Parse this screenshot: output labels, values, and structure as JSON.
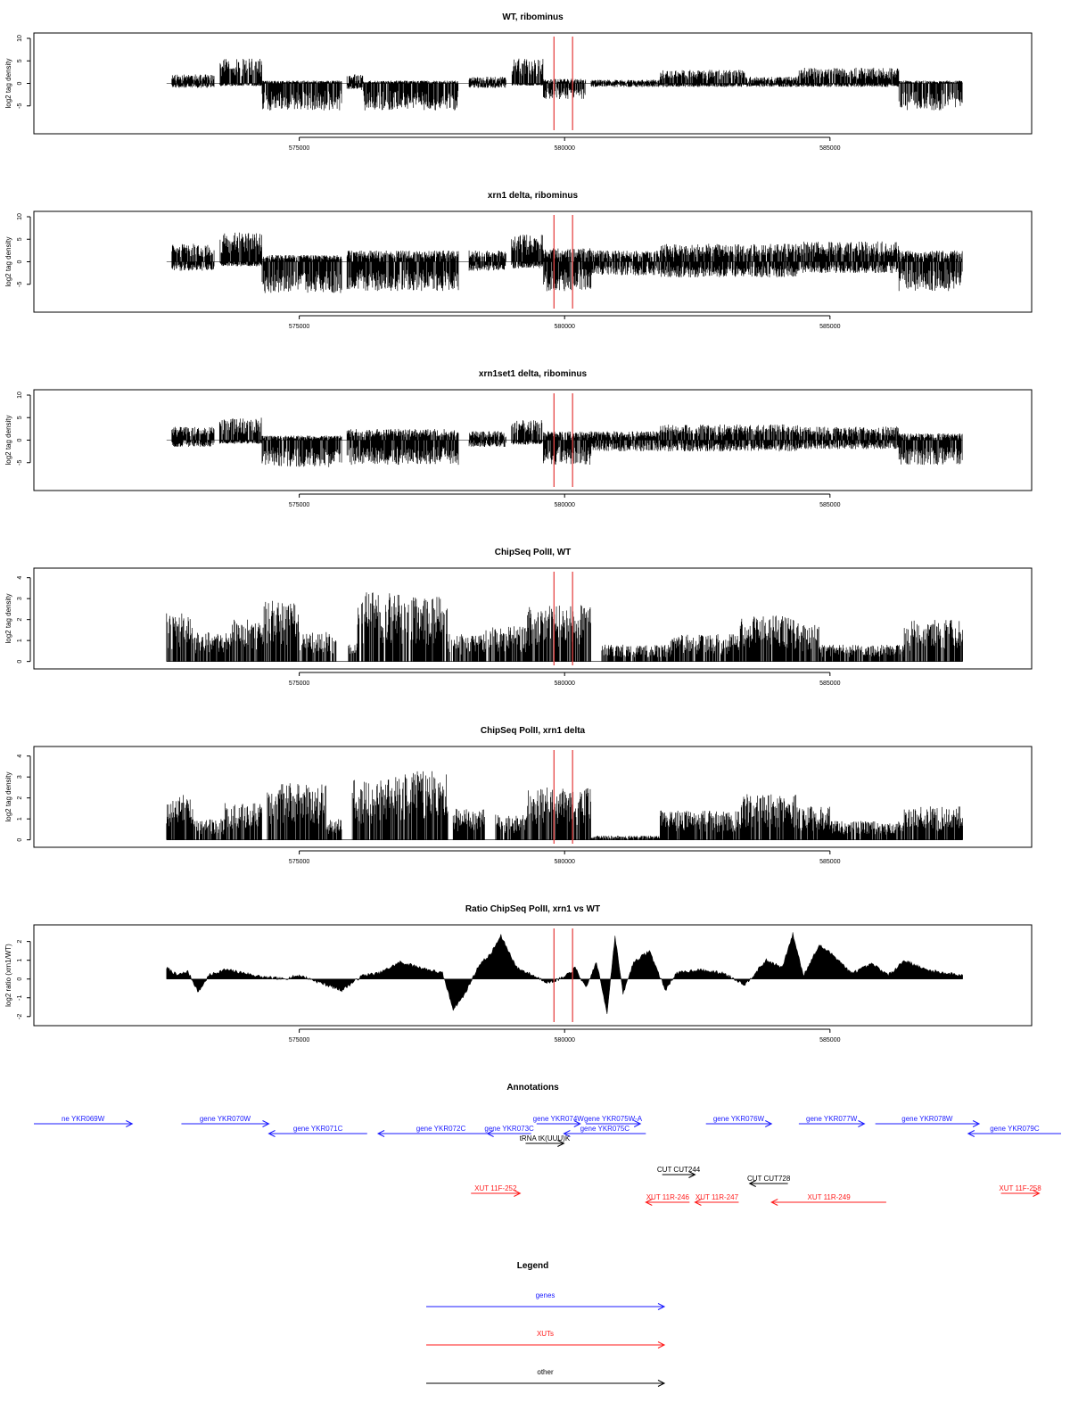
{
  "colors": {
    "gene": "#1a1aff",
    "xut": "#ff1a1a",
    "other": "#000000",
    "marker": "#e64646",
    "trace": "#000000"
  },
  "markers_x": [
    579800,
    580150
  ],
  "chart_data": [
    {
      "type": "bar",
      "title": "WT, ribominus",
      "ylabel": "log2 tag density",
      "ylim": [
        -10,
        10
      ],
      "yticks": [
        -5,
        0,
        5,
        10
      ],
      "ytick_labels": [
        "-5",
        "0",
        "5",
        "10"
      ],
      "xlim": [
        570000,
        588800
      ],
      "xticks": [
        575000,
        580000,
        585000
      ],
      "xtick_labels": [
        "575000",
        "580000",
        "585000"
      ],
      "grid": false,
      "x_range": [
        572500,
        587500
      ],
      "seed": 11,
      "density": 1.0,
      "segments": [
        {
          "x0": 572600,
          "x1": 573400,
          "pos": 2.0,
          "neg": -1.0
        },
        {
          "x0": 573500,
          "x1": 574300,
          "pos": 5.5,
          "neg": -0.6
        },
        {
          "x0": 574300,
          "x1": 575800,
          "pos": 0.6,
          "neg": -6.0
        },
        {
          "x0": 575900,
          "x1": 576200,
          "pos": 2.0,
          "neg": -1.5
        },
        {
          "x0": 576200,
          "x1": 578000,
          "pos": 0.6,
          "neg": -6.0
        },
        {
          "x0": 578200,
          "x1": 578900,
          "pos": 1.5,
          "neg": -1.0
        },
        {
          "x0": 579000,
          "x1": 579600,
          "pos": 5.5,
          "neg": -0.5
        },
        {
          "x0": 579600,
          "x1": 580400,
          "pos": 1.0,
          "neg": -3.5
        },
        {
          "x0": 580500,
          "x1": 581800,
          "pos": 0.8,
          "neg": -0.8
        },
        {
          "x0": 581800,
          "x1": 583400,
          "pos": 3.0,
          "neg": -0.8
        },
        {
          "x0": 583400,
          "x1": 584400,
          "pos": 1.5,
          "neg": -0.8
        },
        {
          "x0": 584400,
          "x1": 586300,
          "pos": 3.5,
          "neg": -0.8
        },
        {
          "x0": 586300,
          "x1": 587500,
          "pos": 0.6,
          "neg": -6.0
        }
      ]
    },
    {
      "type": "bar",
      "title": "xrn1 delta, ribominus",
      "ylabel": "log2 tag density",
      "ylim": [
        -10,
        10
      ],
      "yticks": [
        -5,
        0,
        5,
        10
      ],
      "ytick_labels": [
        "-5",
        "0",
        "5",
        "10"
      ],
      "xlim": [
        570000,
        588800
      ],
      "xticks": [
        575000,
        580000,
        585000
      ],
      "xtick_labels": [
        "575000",
        "580000",
        "585000"
      ],
      "grid": false,
      "x_range": [
        572500,
        587500
      ],
      "seed": 23,
      "density": 1.0,
      "segments": [
        {
          "x0": 572600,
          "x1": 573400,
          "pos": 4.0,
          "neg": -2.0
        },
        {
          "x0": 573500,
          "x1": 574300,
          "pos": 6.5,
          "neg": -1.0
        },
        {
          "x0": 574300,
          "x1": 575800,
          "pos": 1.5,
          "neg": -7.0
        },
        {
          "x0": 575900,
          "x1": 578000,
          "pos": 2.5,
          "neg": -6.5
        },
        {
          "x0": 578200,
          "x1": 578900,
          "pos": 2.5,
          "neg": -2.0
        },
        {
          "x0": 579000,
          "x1": 579600,
          "pos": 6.0,
          "neg": -1.5
        },
        {
          "x0": 579600,
          "x1": 580500,
          "pos": 3.0,
          "neg": -6.5
        },
        {
          "x0": 580500,
          "x1": 581800,
          "pos": 2.5,
          "neg": -3.0
        },
        {
          "x0": 581800,
          "x1": 584400,
          "pos": 4.0,
          "neg": -3.5
        },
        {
          "x0": 584400,
          "x1": 586300,
          "pos": 4.5,
          "neg": -2.5
        },
        {
          "x0": 586300,
          "x1": 587500,
          "pos": 2.5,
          "neg": -6.5
        }
      ]
    },
    {
      "type": "bar",
      "title": "xrn1set1 delta, ribominus",
      "ylabel": "log2 tag density",
      "ylim": [
        -10,
        10
      ],
      "yticks": [
        -5,
        0,
        5,
        10
      ],
      "ytick_labels": [
        "-5",
        "0",
        "5",
        "10"
      ],
      "xlim": [
        570000,
        588800
      ],
      "xticks": [
        575000,
        580000,
        585000
      ],
      "xtick_labels": [
        "575000",
        "580000",
        "585000"
      ],
      "grid": false,
      "x_range": [
        572500,
        587500
      ],
      "seed": 37,
      "density": 1.0,
      "segments": [
        {
          "x0": 572600,
          "x1": 573400,
          "pos": 3.0,
          "neg": -1.5
        },
        {
          "x0": 573500,
          "x1": 574300,
          "pos": 5.0,
          "neg": -0.8
        },
        {
          "x0": 574300,
          "x1": 575800,
          "pos": 1.0,
          "neg": -6.0
        },
        {
          "x0": 575900,
          "x1": 578000,
          "pos": 2.5,
          "neg": -5.5
        },
        {
          "x0": 578200,
          "x1": 578900,
          "pos": 2.0,
          "neg": -1.5
        },
        {
          "x0": 579000,
          "x1": 579600,
          "pos": 4.5,
          "neg": -1.0
        },
        {
          "x0": 579600,
          "x1": 580500,
          "pos": 2.0,
          "neg": -5.5
        },
        {
          "x0": 580500,
          "x1": 581800,
          "pos": 2.0,
          "neg": -2.5
        },
        {
          "x0": 581800,
          "x1": 584400,
          "pos": 3.5,
          "neg": -2.5
        },
        {
          "x0": 584400,
          "x1": 586300,
          "pos": 3.0,
          "neg": -2.0
        },
        {
          "x0": 586300,
          "x1": 587500,
          "pos": 1.5,
          "neg": -5.5
        }
      ]
    },
    {
      "type": "bar",
      "title": "ChipSeq PolII, WT",
      "ylabel": "log2 tag density",
      "ylim": [
        -0.1,
        4.2
      ],
      "yticks": [
        0,
        1,
        2,
        3,
        4
      ],
      "ytick_labels": [
        "0",
        "1",
        "2",
        "3",
        "4"
      ],
      "xlim": [
        570000,
        588800
      ],
      "xticks": [
        575000,
        580000,
        585000
      ],
      "xtick_labels": [
        "575000",
        "580000",
        "585000"
      ],
      "grid": false,
      "x_range": [
        572500,
        587500
      ],
      "seed": 41,
      "density": 1.0,
      "segments": [
        {
          "x0": 572500,
          "x1": 573000,
          "pos": 2.3,
          "neg": 0
        },
        {
          "x0": 573000,
          "x1": 573700,
          "pos": 1.4,
          "neg": 0
        },
        {
          "x0": 573700,
          "x1": 574300,
          "pos": 2.0,
          "neg": 0
        },
        {
          "x0": 574300,
          "x1": 575000,
          "pos": 2.9,
          "neg": 0
        },
        {
          "x0": 575000,
          "x1": 575700,
          "pos": 1.4,
          "neg": 0
        },
        {
          "x0": 575900,
          "x1": 576100,
          "pos": 1.0,
          "neg": 0
        },
        {
          "x0": 576100,
          "x1": 576900,
          "pos": 3.3,
          "neg": 0
        },
        {
          "x0": 576900,
          "x1": 577800,
          "pos": 3.1,
          "neg": 0
        },
        {
          "x0": 577800,
          "x1": 578500,
          "pos": 1.3,
          "neg": 0
        },
        {
          "x0": 578500,
          "x1": 579300,
          "pos": 1.7,
          "neg": 0
        },
        {
          "x0": 579300,
          "x1": 580500,
          "pos": 2.7,
          "neg": 0
        },
        {
          "x0": 580700,
          "x1": 582000,
          "pos": 0.8,
          "neg": 0
        },
        {
          "x0": 582000,
          "x1": 583300,
          "pos": 1.3,
          "neg": 0
        },
        {
          "x0": 583300,
          "x1": 584400,
          "pos": 2.2,
          "neg": 0
        },
        {
          "x0": 584400,
          "x1": 584800,
          "pos": 1.8,
          "neg": 0
        },
        {
          "x0": 584800,
          "x1": 586400,
          "pos": 0.8,
          "neg": 0
        },
        {
          "x0": 586400,
          "x1": 587500,
          "pos": 2.0,
          "neg": 0
        }
      ]
    },
    {
      "type": "bar",
      "title": "ChipSeq PolII, xrn1 delta",
      "ylabel": "log2 tag density",
      "ylim": [
        -0.1,
        4.2
      ],
      "yticks": [
        0,
        1,
        2,
        3,
        4
      ],
      "ytick_labels": [
        "0",
        "1",
        "2",
        "3",
        "4"
      ],
      "xlim": [
        570000,
        588800
      ],
      "xticks": [
        575000,
        580000,
        585000
      ],
      "xtick_labels": [
        "575000",
        "580000",
        "585000"
      ],
      "grid": false,
      "x_range": [
        572500,
        587500
      ],
      "seed": 53,
      "density": 1.0,
      "segments": [
        {
          "x0": 572500,
          "x1": 573000,
          "pos": 2.2,
          "neg": 0
        },
        {
          "x0": 573000,
          "x1": 573600,
          "pos": 1.0,
          "neg": 0
        },
        {
          "x0": 573600,
          "x1": 574300,
          "pos": 1.8,
          "neg": 0
        },
        {
          "x0": 574400,
          "x1": 575500,
          "pos": 2.7,
          "neg": 0
        },
        {
          "x0": 575500,
          "x1": 575800,
          "pos": 1.0,
          "neg": 0
        },
        {
          "x0": 576000,
          "x1": 576800,
          "pos": 2.9,
          "neg": 0
        },
        {
          "x0": 576800,
          "x1": 577800,
          "pos": 3.3,
          "neg": 0
        },
        {
          "x0": 577900,
          "x1": 578500,
          "pos": 1.5,
          "neg": 0
        },
        {
          "x0": 578700,
          "x1": 579300,
          "pos": 1.2,
          "neg": 0
        },
        {
          "x0": 579300,
          "x1": 580500,
          "pos": 2.5,
          "neg": 0
        },
        {
          "x0": 580500,
          "x1": 581800,
          "pos": 0.2,
          "neg": 0
        },
        {
          "x0": 581800,
          "x1": 583300,
          "pos": 1.4,
          "neg": 0
        },
        {
          "x0": 583300,
          "x1": 584400,
          "pos": 2.2,
          "neg": 0
        },
        {
          "x0": 584400,
          "x1": 585000,
          "pos": 1.6,
          "neg": 0
        },
        {
          "x0": 585000,
          "x1": 586400,
          "pos": 0.9,
          "neg": 0
        },
        {
          "x0": 586400,
          "x1": 587500,
          "pos": 1.6,
          "neg": 0
        }
      ]
    },
    {
      "type": "area",
      "title": "Ratio ChipSeq PolII, xrn1 vs WT",
      "ylabel": "log2 ratio (xrn1/WT)",
      "ylim": [
        -2.2,
        2.6
      ],
      "yticks": [
        -2,
        -1,
        0,
        1,
        2
      ],
      "ytick_labels": [
        "-2",
        "-1",
        "0",
        "1",
        "2"
      ],
      "xlim": [
        570000,
        588800
      ],
      "xticks": [
        575000,
        580000,
        585000
      ],
      "xtick_labels": [
        "575000",
        "580000",
        "585000"
      ],
      "grid": false,
      "x_range": [
        572500,
        587500
      ],
      "x": [
        572500,
        572700,
        572900,
        573100,
        573300,
        573600,
        574000,
        574300,
        574700,
        575000,
        575500,
        575800,
        576200,
        576500,
        576900,
        577300,
        577700,
        577900,
        578100,
        578400,
        578600,
        578800,
        579100,
        579400,
        579700,
        580000,
        580200,
        580400,
        580600,
        580800,
        580950,
        581100,
        581300,
        581600,
        581900,
        582100,
        582500,
        583000,
        583400,
        583800,
        584100,
        584300,
        584500,
        584800,
        585100,
        585400,
        585800,
        586100,
        586400,
        586800,
        587200,
        587500
      ],
      "values": [
        0.6,
        0.2,
        0.4,
        -0.7,
        0.2,
        0.5,
        0.3,
        0.1,
        0.0,
        0.2,
        -0.3,
        -0.6,
        0.2,
        0.3,
        0.9,
        0.6,
        0.3,
        -1.6,
        -0.9,
        0.8,
        1.3,
        2.3,
        0.6,
        0.2,
        -0.2,
        0.1,
        0.6,
        -0.5,
        0.9,
        -1.8,
        2.3,
        -0.8,
        0.9,
        1.5,
        -0.6,
        0.3,
        0.5,
        0.3,
        -0.3,
        1.0,
        0.6,
        2.4,
        0.2,
        1.8,
        1.2,
        0.3,
        0.8,
        0.2,
        1.0,
        0.5,
        0.3,
        0.2
      ]
    }
  ],
  "annotations": {
    "title": "Annotations",
    "xlim": [
      570000,
      588800
    ],
    "items": [
      {
        "label": "ne YKR069W",
        "kind": "gene",
        "dir": 1,
        "x0": 570000,
        "x1": 571800,
        "row": 0
      },
      {
        "label": "gene YKR070W",
        "kind": "gene",
        "dir": 1,
        "x0": 572700,
        "x1": 574300,
        "row": 0
      },
      {
        "label": "gene YKR071C",
        "kind": "gene",
        "dir": -1,
        "x0": 574300,
        "x1": 576100,
        "row": 1
      },
      {
        "label": "gene YKR072C",
        "kind": "gene",
        "dir": -1,
        "x0": 576300,
        "x1": 578600,
        "row": 1
      },
      {
        "label": "gene YKR073C",
        "kind": "gene",
        "dir": -1,
        "x0": 578300,
        "x1": 579100,
        "row": 1
      },
      {
        "label": "gene YKR074W",
        "kind": "gene",
        "dir": 1,
        "x0": 579200,
        "x1": 580000,
        "row": 0
      },
      {
        "label": "gene YKR075W-A",
        "kind": "gene",
        "dir": 1,
        "x0": 580100,
        "x1": 581100,
        "row": 0
      },
      {
        "label": "gene YKR075C",
        "kind": "gene",
        "dir": -1,
        "x0": 579700,
        "x1": 581200,
        "row": 1
      },
      {
        "label": "tRNA tK(UUU)K",
        "kind": "other",
        "dir": 1,
        "x0": 579000,
        "x1": 579700,
        "row": 2
      },
      {
        "label": "gene YKR076W",
        "kind": "gene",
        "dir": 1,
        "x0": 582300,
        "x1": 583500,
        "row": 0
      },
      {
        "label": "gene YKR077W",
        "kind": "gene",
        "dir": 1,
        "x0": 584000,
        "x1": 585200,
        "row": 0
      },
      {
        "label": "gene YKR078W",
        "kind": "gene",
        "dir": 1,
        "x0": 585400,
        "x1": 587300,
        "row": 0
      },
      {
        "label": "gene YKR079C",
        "kind": "gene",
        "dir": -1,
        "x0": 587100,
        "x1": 588800,
        "row": 1
      },
      {
        "label": "CUT CUT244",
        "kind": "other",
        "dir": 1,
        "x0": 581500,
        "x1": 582100,
        "row": 4
      },
      {
        "label": "CUT CUT728",
        "kind": "other",
        "dir": -1,
        "x0": 583100,
        "x1": 583800,
        "row": 5
      },
      {
        "label": "XUT 11F-252",
        "kind": "xut",
        "dir": 1,
        "x0": 578000,
        "x1": 578900,
        "row": 6
      },
      {
        "label": "XUT 11R-246",
        "kind": "xut",
        "dir": -1,
        "x0": 581200,
        "x1": 582000,
        "row": 7
      },
      {
        "label": "XUT 11R-247",
        "kind": "xut",
        "dir": -1,
        "x0": 582100,
        "x1": 582900,
        "row": 7
      },
      {
        "label": "XUT 11R-249",
        "kind": "xut",
        "dir": -1,
        "x0": 583500,
        "x1": 585600,
        "row": 7
      },
      {
        "label": "XUT 11F-258",
        "kind": "xut",
        "dir": 1,
        "x0": 587700,
        "x1": 588400,
        "row": 6
      }
    ]
  },
  "legend": {
    "title": "Legend",
    "items": [
      {
        "label": "genes",
        "kind": "gene"
      },
      {
        "label": "XUTs",
        "kind": "xut"
      },
      {
        "label": "other",
        "kind": "other"
      }
    ]
  }
}
